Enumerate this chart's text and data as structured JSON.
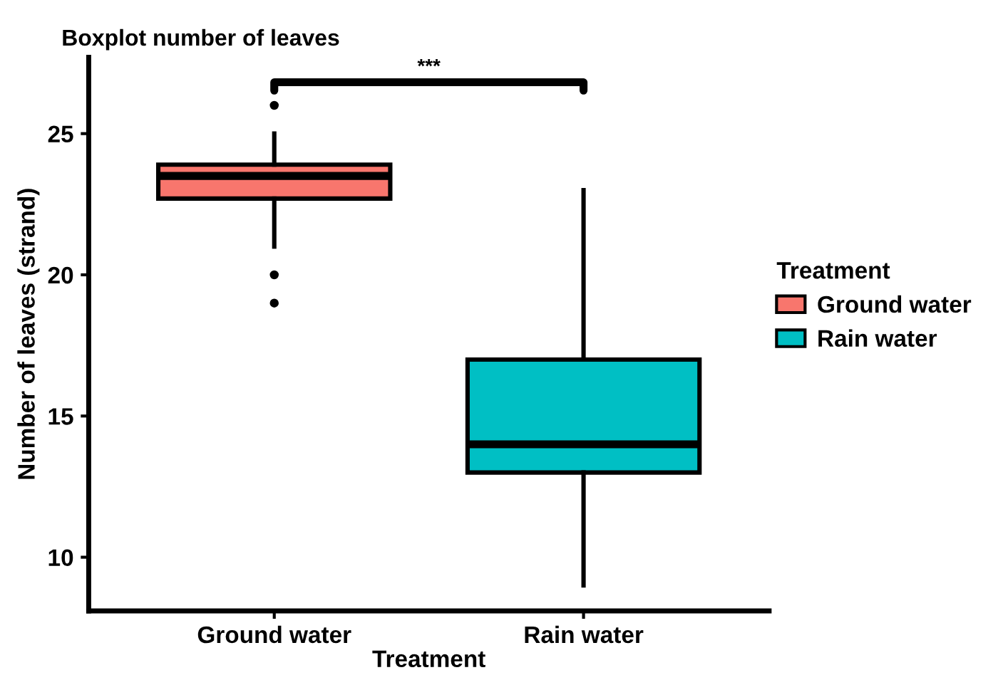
{
  "chart_data": {
    "type": "box",
    "title": "Boxplot number of leaves",
    "xlabel": "Treatment",
    "ylabel": "Number of leaves (strand)",
    "legend_title": "Treatment",
    "categories": [
      "Ground water",
      "Rain water"
    ],
    "series": [
      {
        "name": "Ground water",
        "color": "#f8766d",
        "boxes": [
          {
            "low": 21,
            "q1": 22.7,
            "median": 23.5,
            "q3": 23.9,
            "high": 25,
            "outliers": [
              26,
              20,
              19
            ]
          },
          null
        ]
      },
      {
        "name": "Rain water",
        "color": "#00bfc4",
        "boxes": [
          null,
          {
            "low": 9,
            "q1": 13,
            "median": 14,
            "q3": 17,
            "high": 23
          }
        ]
      }
    ],
    "ylim": [
      8.1,
      27.7
    ],
    "yticks": [
      10,
      15,
      20,
      25
    ],
    "grid": false,
    "legend": "right",
    "annotations": [
      "***"
    ]
  }
}
